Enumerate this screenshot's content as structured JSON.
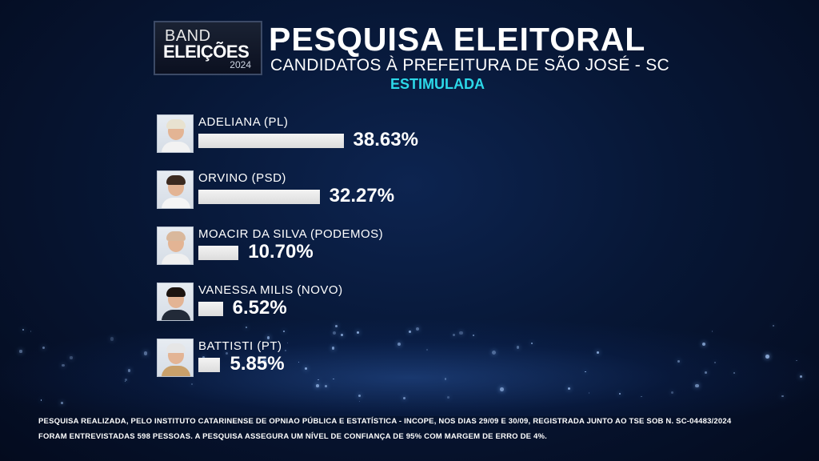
{
  "logo": {
    "line1": "BAND",
    "line2": "ELEIÇÕES",
    "year": "2024"
  },
  "header": {
    "title": "PESQUISA ELEITORAL",
    "subtitle": "CANDIDATOS À PREFEITURA DE SÃO JOSÉ - SC",
    "badge": "ESTIMULADA"
  },
  "colors": {
    "background": "#071736",
    "bar": "#e8e8e8",
    "accent": "#2cd8e8"
  },
  "chart_data": {
    "type": "bar",
    "orientation": "horizontal",
    "categories": [
      "ADELIANA (PL)",
      "ORVINO (PSD)",
      "MOACIR DA SILVA (PODEMOS)",
      "VANESSA MILIS (NOVO)",
      "BATTISTI (PT)"
    ],
    "values": [
      38.63,
      32.27,
      10.7,
      6.52,
      5.85
    ],
    "labels": [
      "38.63%",
      "32.27%",
      "10.70%",
      "6.52%",
      "5.85%"
    ],
    "title": "PESQUISA ELEITORAL",
    "xlabel": "",
    "ylabel": ""
  },
  "footer": {
    "line1": "PESQUISA REALIZADA, PELO INSTITUTO CATARINENSE DE OPNIAO PÚBLICA E ESTATÍSTICA - INCOPE, NOS DIAS 29/09 E 30/09, REGISTRADA JUNTO AO TSE SOB N. SC-04483/2024",
    "line2": "FORAM ENTREVISTADAS 598 PESSOAS. A PESQUISA ASSEGURA UM NÍVEL DE CONFIANÇA DE 95% COM MARGEM DE ERRO DE 4%."
  }
}
